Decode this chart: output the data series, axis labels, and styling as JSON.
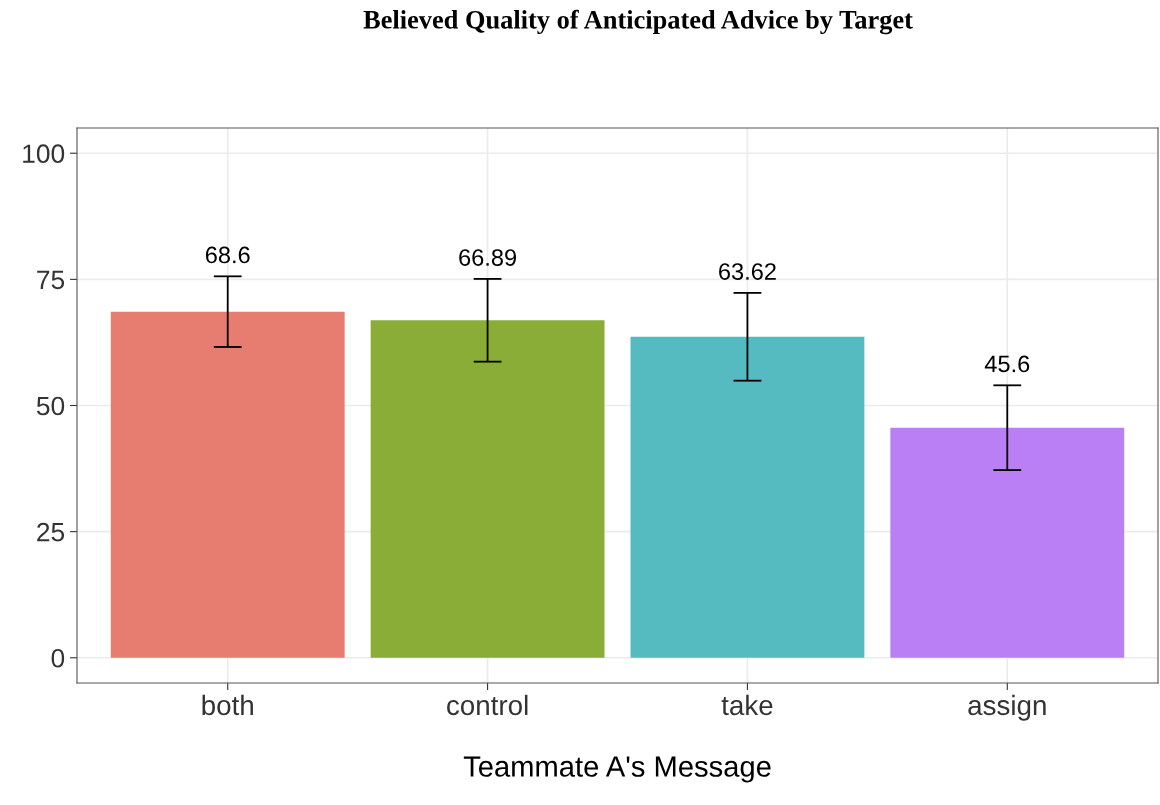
{
  "chart_data": {
    "type": "bar",
    "title": "Believed Quality of Anticipated Advice by Target",
    "xlabel": "Teammate A's Message",
    "categories": [
      "both",
      "control",
      "take",
      "assign"
    ],
    "values": [
      68.6,
      66.89,
      63.62,
      45.6
    ],
    "colors": [
      "#e77c70",
      "#89ad36",
      "#56bbc0",
      "#bb7ff5"
    ],
    "errors": [
      7.0,
      8.2,
      8.7,
      8.4
    ],
    "data_labels": true,
    "ylim": [
      -5,
      105
    ],
    "yticks": [
      0,
      25,
      50,
      75,
      100
    ],
    "grid": true
  }
}
